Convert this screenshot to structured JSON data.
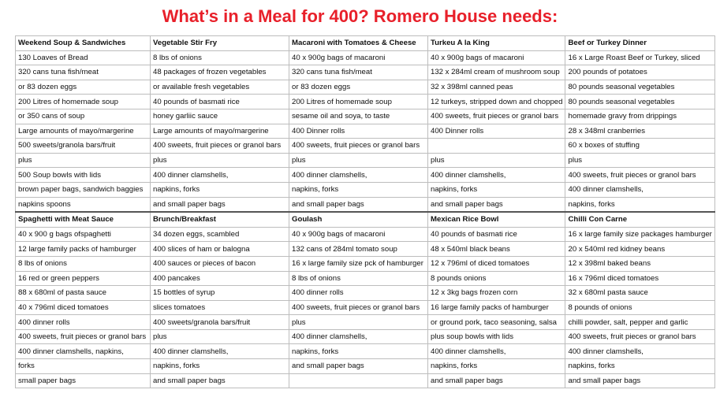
{
  "title": "What’s in a Meal for 400? Romero House needs:",
  "blocks": [
    {
      "meals": [
        {
          "name": "Weekend Soup & Sandwiches",
          "items": [
            "130 Loaves of Bread",
            "320 cans tuna fish/meat",
            "or 83 dozen eggs",
            "200 Litres of homemade soup",
            "or 350 cans of soup",
            "Large amounts of mayo/margerine",
            "500 sweets/granola bars/fruit",
            "plus",
            "500 Soup bowls with lids",
            "brown paper bags, sandwich baggies",
            "napkins spoons"
          ]
        },
        {
          "name": "Vegetable Stir Fry",
          "items": [
            "8 lbs of onions",
            "48 packages of frozen vegetables",
            "or available fresh vegetables",
            "40 pounds of basmati rice",
            "honey garliic sauce",
            "Large amounts of mayo/margerine",
            "400 sweets, fruit pieces or granol bars",
            "plus",
            "400 dinner clamshells,",
            "napkins, forks",
            "and small paper bags"
          ]
        },
        {
          "name": "Macaroni with Tomatoes & Cheese",
          "items": [
            "40 x 900g bags of macaroni",
            "320 cans tuna fish/meat",
            "or 83 dozen eggs",
            "200 Litres of homemade soup",
            "sesame oil and soya, to taste",
            "400 Dinner rolls",
            "400 sweets, fruit pieces or granol bars",
            "plus",
            "400 dinner clamshells,",
            "napkins, forks",
            "and small paper bags"
          ]
        },
        {
          "name": "Turkeu A la King",
          "items": [
            "40 x 900g bags of macaroni",
            "132 x 284ml cream of mushroom soup",
            "32 x 398ml canned peas",
            "12 turkeys, stripped down and chopped",
            "400 sweets, fruit pieces or granol bars",
            "400 Dinner rolls",
            "",
            "plus",
            "400 dinner clamshells,",
            "napkins, forks",
            "and small paper bags"
          ]
        },
        {
          "name": "Beef or Turkey Dinner",
          "items": [
            "16 x Large Roast Beef or Turkey, sliced",
            "200 pounds of potatoes",
            "80 pounds seasonal vegetables",
            "80 pounds seasonal vegetables",
            "homemade gravy from drippings",
            "28 x 348ml cranberries",
            "60 x boxes of stuffing",
            "plus",
            "400 sweets, fruit pieces or granol bars",
            "400 dinner clamshells,",
            "napkins, forks"
          ]
        }
      ]
    },
    {
      "meals": [
        {
          "name": "Spaghetti with Meat Sauce",
          "items": [
            "40 x 900 g bags ofspaghetti",
            "12 large family packs of hamburger",
            "8 lbs of onions",
            "16 red or green peppers",
            "88 x 680ml of pasta sauce",
            "40 x 796ml diced tomatoes",
            "400 dinner rolls",
            "400 sweets, fruit pieces or granol bars",
            "400 dinner clamshells, napkins,",
            "forks",
            "small paper bags"
          ]
        },
        {
          "name": "Brunch/Breakfast",
          "items": [
            "34 dozen eggs, scambled",
            "400 slices of ham or balogna",
            "400 sauces or pieces of bacon",
            "400 pancakes",
            "15 bottles of syrup",
            "slices tomatoes",
            "400 sweets/granola bars/fruit",
            "plus",
            "400 dinner clamshells,",
            "napkins, forks",
            "and small paper bags"
          ]
        },
        {
          "name": "Goulash",
          "items": [
            "40 x 900g bags of macaroni",
            "132 cans of 284ml tomato soup",
            "16 x large family size pck of hamburger",
            "8 lbs of onions",
            "400 dinner rolls",
            "400 sweets, fruit pieces or granol bars",
            "plus",
            "400 dinner clamshells,",
            "napkins, forks",
            "and small paper bags",
            ""
          ]
        },
        {
          "name": "Mexican Rice Bowl",
          "items": [
            "40 pounds of basmati rice",
            "48 x 540ml black beans",
            "12 x 796ml of diced tomatoes",
            "8 pounds onions",
            "12 x 3kg bags frozen corn",
            "16 large family packs of hamburger",
            "or ground pork, taco seasoning, salsa",
            "plus soup bowls with lids",
            "400 dinner clamshells,",
            "napkins, forks",
            "and small paper bags"
          ]
        },
        {
          "name": "Chilli Con Carne",
          "items": [
            "16 x large family size packages hamburger",
            "20 x 540ml red kidney beans",
            "12 x 398ml baked beans",
            "16 x 796ml diced tomatoes",
            "32 x 680ml pasta sauce",
            "8 pounds of onions",
            "chilli powder, salt, pepper and garlic",
            "400 sweets, fruit pieces or granol bars",
            "400 dinner clamshells,",
            "napkins, forks",
            "and small paper bags"
          ]
        }
      ]
    }
  ]
}
